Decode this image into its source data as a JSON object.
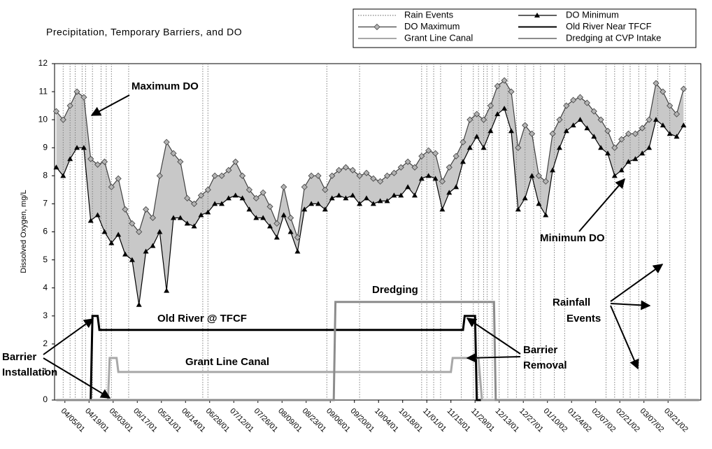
{
  "chart_data": {
    "type": "line",
    "title": "Precipitation, Temporary Barriers, and DO",
    "y_label": "Dissolved Oxygen, mg/L",
    "xlim": [
      "03/30/01",
      "04/09/02"
    ],
    "xticks": [
      "04/05/01",
      "04/19/01",
      "05/03/01",
      "05/17/01",
      "05/31/01",
      "06/14/01",
      "06/28/01",
      "07/12/01",
      "07/26/01",
      "08/09/01",
      "08/23/01",
      "09/06/01",
      "09/20/01",
      "10/04/01",
      "10/18/01",
      "11/01/01",
      "11/15/01",
      "11/29/01",
      "12/13/01",
      "12/27/01",
      "01/10/02",
      "01/24/02",
      "02/07/02",
      "02/21/02",
      "03/07/02",
      "03/21/02"
    ],
    "ylim": [
      0,
      12
    ],
    "yticks": [
      0,
      1,
      2,
      3,
      4,
      5,
      6,
      7,
      8,
      9,
      10,
      11,
      12
    ],
    "grid": false,
    "legend": "top-right",
    "series": [
      {
        "name": "Rain Events",
        "color": "#808080",
        "style": "vertical",
        "x": [
          "04/04/01",
          "04/08/01",
          "04/11/01",
          "04/15/01",
          "04/17/01",
          "04/21/01",
          "04/26/01",
          "04/29/01",
          "05/02/01",
          "05/12/01",
          "06/24/01",
          "06/27/01",
          "09/04/01",
          "09/23/01",
          "10/29/01",
          "11/01/01",
          "11/05/01",
          "11/09/01",
          "11/21/01",
          "11/28/01",
          "12/01/01",
          "12/04/01",
          "12/06/01",
          "12/09/01",
          "12/13/01",
          "12/18/01",
          "12/23/01",
          "12/28/01",
          "01/02/02",
          "01/06/02",
          "01/14/02",
          "01/20/02",
          "02/13/02",
          "02/18/02",
          "02/23/02",
          "02/27/02",
          "03/04/02",
          "03/08/02",
          "03/15/02",
          "03/22/02",
          "03/31/02"
        ],
        "values": [
          12,
          12,
          12,
          12,
          12,
          12,
          12,
          12,
          12,
          12,
          12,
          12,
          12,
          12,
          12,
          12,
          12,
          12,
          12,
          12,
          12,
          12,
          12,
          12,
          12,
          12,
          12,
          12,
          12,
          12,
          12,
          12,
          12,
          12,
          12,
          12,
          12,
          12,
          12,
          12,
          12
        ]
      },
      {
        "name": "DO Minimum",
        "color": "#000000",
        "style": "line",
        "marker": "triangle",
        "x": [
          "03/31/01",
          "04/04/01",
          "04/08/01",
          "04/12/01",
          "04/16/01",
          "04/20/01",
          "04/24/01",
          "04/28/01",
          "05/02/01",
          "05/06/01",
          "05/10/01",
          "05/14/01",
          "05/18/01",
          "05/22/01",
          "05/26/01",
          "05/30/01",
          "06/03/01",
          "06/07/01",
          "06/11/01",
          "06/15/01",
          "06/19/01",
          "06/23/01",
          "06/27/01",
          "07/01/01",
          "07/05/01",
          "07/09/01",
          "07/13/01",
          "07/17/01",
          "07/21/01",
          "07/25/01",
          "07/29/01",
          "08/02/01",
          "08/06/01",
          "08/10/01",
          "08/14/01",
          "08/18/01",
          "08/22/01",
          "08/26/01",
          "08/30/01",
          "09/03/01",
          "09/07/01",
          "09/11/01",
          "09/15/01",
          "09/19/01",
          "09/23/01",
          "09/27/01",
          "10/01/01",
          "10/05/01",
          "10/09/01",
          "10/13/01",
          "10/17/01",
          "10/21/01",
          "10/25/01",
          "10/29/01",
          "11/02/01",
          "11/06/01",
          "11/10/01",
          "11/14/01",
          "11/18/01",
          "11/22/01",
          "11/26/01",
          "11/30/01",
          "12/04/01",
          "12/08/01",
          "12/12/01",
          "12/16/01",
          "12/20/01",
          "12/24/01",
          "12/28/01",
          "01/01/02",
          "01/05/02",
          "01/09/02",
          "01/13/02",
          "01/17/02",
          "01/21/02",
          "01/25/02",
          "01/29/02",
          "02/02/02",
          "02/06/02",
          "02/10/02",
          "02/14/02",
          "02/18/02",
          "02/22/02",
          "02/26/02",
          "03/02/02",
          "03/06/02",
          "03/10/02",
          "03/14/02",
          "03/18/02",
          "03/22/02",
          "03/26/02",
          "03/30/02"
        ],
        "values": [
          8.3,
          8.0,
          8.6,
          9.0,
          9.0,
          6.4,
          6.6,
          6.0,
          5.6,
          5.9,
          5.2,
          5.0,
          3.4,
          5.3,
          5.5,
          6.0,
          3.9,
          6.5,
          6.5,
          6.3,
          6.2,
          6.6,
          6.7,
          7.0,
          7.0,
          7.2,
          7.3,
          7.2,
          6.8,
          6.5,
          6.5,
          6.2,
          5.8,
          6.6,
          6.0,
          5.3,
          6.8,
          7.0,
          7.0,
          6.8,
          7.2,
          7.3,
          7.2,
          7.3,
          7.0,
          7.2,
          7.0,
          7.1,
          7.1,
          7.3,
          7.3,
          7.6,
          7.3,
          7.9,
          8.0,
          7.9,
          6.8,
          7.4,
          7.6,
          8.5,
          9.0,
          9.4,
          9.0,
          9.6,
          10.2,
          10.4,
          9.6,
          6.8,
          7.2,
          8.0,
          7.0,
          6.6,
          8.2,
          9.0,
          9.6,
          9.8,
          10.0,
          9.7,
          9.4,
          9.0,
          8.8,
          8.0,
          8.2,
          8.5,
          8.6,
          8.8,
          9.0,
          10.0,
          9.8,
          9.5,
          9.4,
          9.8
        ]
      },
      {
        "name": "DO Maximum",
        "color": "#404040",
        "style": "line",
        "marker": "diamond",
        "fill": "#c8c8c8",
        "x": [
          "03/31/01",
          "04/04/01",
          "04/08/01",
          "04/12/01",
          "04/16/01",
          "04/20/01",
          "04/24/01",
          "04/28/01",
          "05/02/01",
          "05/06/01",
          "05/10/01",
          "05/14/01",
          "05/18/01",
          "05/22/01",
          "05/26/01",
          "05/30/01",
          "06/03/01",
          "06/07/01",
          "06/11/01",
          "06/15/01",
          "06/19/01",
          "06/23/01",
          "06/27/01",
          "07/01/01",
          "07/05/01",
          "07/09/01",
          "07/13/01",
          "07/17/01",
          "07/21/01",
          "07/25/01",
          "07/29/01",
          "08/02/01",
          "08/06/01",
          "08/10/01",
          "08/14/01",
          "08/18/01",
          "08/22/01",
          "08/26/01",
          "08/30/01",
          "09/03/01",
          "09/07/01",
          "09/11/01",
          "09/15/01",
          "09/19/01",
          "09/23/01",
          "09/27/01",
          "10/01/01",
          "10/05/01",
          "10/09/01",
          "10/13/01",
          "10/17/01",
          "10/21/01",
          "10/25/01",
          "10/29/01",
          "11/02/01",
          "11/06/01",
          "11/10/01",
          "11/14/01",
          "11/18/01",
          "11/22/01",
          "11/26/01",
          "11/30/01",
          "12/04/01",
          "12/08/01",
          "12/12/01",
          "12/16/01",
          "12/20/01",
          "12/24/01",
          "12/28/01",
          "01/01/02",
          "01/05/02",
          "01/09/02",
          "01/13/02",
          "01/17/02",
          "01/21/02",
          "01/25/02",
          "01/29/02",
          "02/02/02",
          "02/06/02",
          "02/10/02",
          "02/14/02",
          "02/18/02",
          "02/22/02",
          "02/26/02",
          "03/02/02",
          "03/06/02",
          "03/10/02",
          "03/14/02",
          "03/18/02",
          "03/22/02",
          "03/26/02",
          "03/30/02"
        ],
        "values": [
          10.3,
          10.0,
          10.5,
          11.0,
          10.8,
          8.6,
          8.4,
          8.5,
          7.6,
          7.9,
          6.8,
          6.3,
          6.0,
          6.8,
          6.5,
          8.0,
          9.2,
          8.8,
          8.5,
          7.2,
          7.0,
          7.3,
          7.5,
          8.0,
          8.0,
          8.2,
          8.5,
          8.0,
          7.5,
          7.2,
          7.4,
          6.9,
          6.3,
          7.6,
          6.5,
          5.8,
          7.6,
          8.0,
          8.0,
          7.5,
          8.0,
          8.2,
          8.3,
          8.2,
          8.0,
          8.1,
          7.9,
          7.8,
          8.0,
          8.1,
          8.3,
          8.5,
          8.3,
          8.7,
          8.9,
          8.8,
          7.8,
          8.3,
          8.7,
          9.2,
          10.0,
          10.2,
          10.0,
          10.5,
          11.2,
          11.4,
          11.0,
          9.0,
          9.8,
          9.5,
          8.0,
          7.8,
          9.5,
          10.0,
          10.5,
          10.7,
          10.8,
          10.6,
          10.3,
          10.0,
          9.6,
          9.0,
          9.3,
          9.5,
          9.5,
          9.7,
          10.0,
          11.3,
          11.0,
          10.5,
          10.2,
          11.1
        ]
      },
      {
        "name": "Old River Near TFCF",
        "color": "#000000",
        "style": "step",
        "x": [
          "03/31/01",
          "04/20/01",
          "04/21/01",
          "04/24/01",
          "04/25/01",
          "11/22/01",
          "11/23/01",
          "11/29/01",
          "11/30/01",
          "04/08/02"
        ],
        "values": [
          0,
          0,
          3,
          3,
          2.5,
          2.5,
          3,
          3,
          0,
          0
        ]
      },
      {
        "name": "Grant Line Canal",
        "color": "#a8a8a8",
        "style": "step",
        "x": [
          "03/31/01",
          "04/30/01",
          "05/01/01",
          "05/05/01",
          "05/06/01",
          "11/15/01",
          "11/16/01",
          "12/01/01",
          "12/03/01",
          "04/08/02"
        ],
        "values": [
          0,
          0,
          1.5,
          1.5,
          1,
          1,
          1.5,
          1.5,
          0,
          0
        ]
      },
      {
        "name": "Dredging at CVP Intake",
        "color": "#8c8c8c",
        "style": "step",
        "x": [
          "03/31/01",
          "09/08/01",
          "09/09/01",
          "12/10/01",
          "12/11/01",
          "04/08/02"
        ],
        "values": [
          0,
          0,
          3.5,
          3.5,
          0,
          0
        ]
      }
    ],
    "annotations": [
      [
        "Maximum DO"
      ],
      [
        "Minimum DO"
      ],
      [
        "Dredging"
      ],
      [
        "Old River @ TFCF"
      ],
      [
        "Grant Line Canal"
      ],
      [
        "Barrier",
        "Installation"
      ],
      [
        "Barrier",
        "Removal"
      ],
      [
        "Rainfall",
        "Events"
      ]
    ]
  }
}
